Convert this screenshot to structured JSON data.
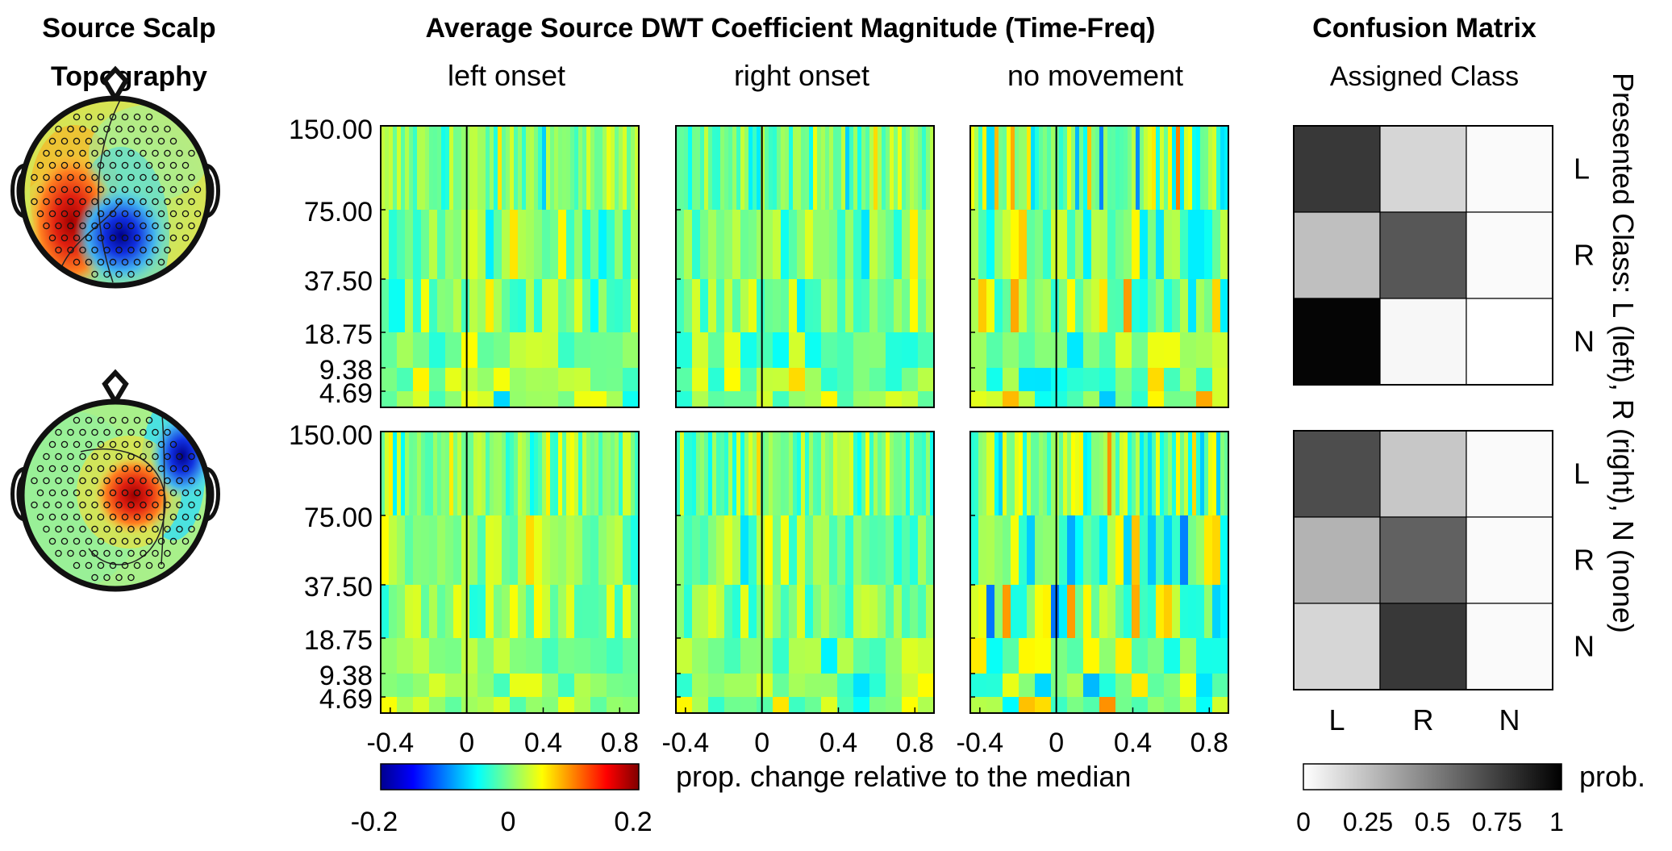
{
  "chart_data": {
    "type": "heatmap",
    "headers": {
      "topography": [
        "Source Scalp",
        "Topography"
      ],
      "dwt": "Average Source DWT Coefficient Magnitude (Time-Freq)",
      "confusion": "Confusion Matrix",
      "assigned": "Assigned Class"
    },
    "conditions": [
      "left onset",
      "right onset",
      "no movement"
    ],
    "frequency_bands": [
      "150.00",
      "75.00",
      "37.50",
      "18.75",
      "9.38",
      "4.69"
    ],
    "time_ticks": [
      "-0.4",
      "0",
      "0.4",
      "0.8"
    ],
    "time_range": [
      -0.45,
      0.9
    ],
    "colorbar": {
      "label": "prop. change relative to the median",
      "min": "-0.2",
      "mid": "0",
      "max": "0.2",
      "colormap": "jet",
      "range": [
        -0.2,
        0.2
      ]
    },
    "confusion": {
      "col_labels": [
        "L",
        "R",
        "N"
      ],
      "row_labels": [
        "L",
        "R",
        "N"
      ],
      "ylabel": "Presented Class: L (left), R (right), N (none)",
      "colorbar_label": "prob.",
      "colorbar_ticks": [
        "0",
        "0.25",
        "0.5",
        "0.75",
        "1"
      ],
      "colormap": "gray (white=0, black=1)",
      "matrices": [
        [
          [
            0.78,
            0.16,
            0.02
          ],
          [
            0.25,
            0.66,
            0.02
          ],
          [
            0.98,
            0.03,
            0.0
          ]
        ],
        [
          [
            0.7,
            0.22,
            0.02
          ],
          [
            0.3,
            0.62,
            0.02
          ],
          [
            0.16,
            0.78,
            0.02
          ]
        ]
      ]
    },
    "rows": [
      {
        "component": 1,
        "topography": "left-frontal positive lobe with central negative lobe"
      },
      {
        "component": 2,
        "topography": "central positive lobe with right negative lobe"
      }
    ]
  }
}
